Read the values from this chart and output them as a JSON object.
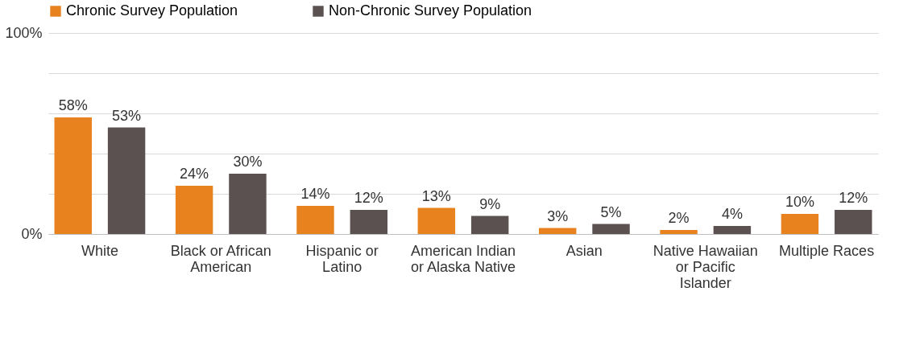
{
  "chart_data": {
    "type": "bar",
    "categories": [
      "White",
      "Black or African American",
      "Hispanic or Latino",
      "American Indian or Alaska Native",
      "Asian",
      "Native Hawaiian or Pacific Islander",
      "Multiple Races"
    ],
    "series": [
      {
        "name": "Chronic Survey Population",
        "color": "#e8821e",
        "values": [
          58,
          24,
          14,
          13,
          3,
          2,
          10
        ],
        "value_labels": [
          "58%",
          "24%",
          "14%",
          "13%",
          "3%",
          "2%",
          "10%"
        ]
      },
      {
        "name": "Non-Chronic Survey Population",
        "color": "#5a5150",
        "values": [
          53,
          30,
          12,
          9,
          5,
          4,
          12
        ],
        "value_labels": [
          "53%",
          "30%",
          "12%",
          "9%",
          "5%",
          "4%",
          "12%"
        ]
      }
    ],
    "ylim": [
      0,
      100
    ],
    "yticks": [
      {
        "value": 0,
        "label": "0%"
      },
      {
        "value": 20,
        "label": null
      },
      {
        "value": 40,
        "label": null
      },
      {
        "value": 60,
        "label": null
      },
      {
        "value": 80,
        "label": null
      },
      {
        "value": 100,
        "label": "100%"
      }
    ],
    "grid": "y",
    "legend": "top"
  }
}
